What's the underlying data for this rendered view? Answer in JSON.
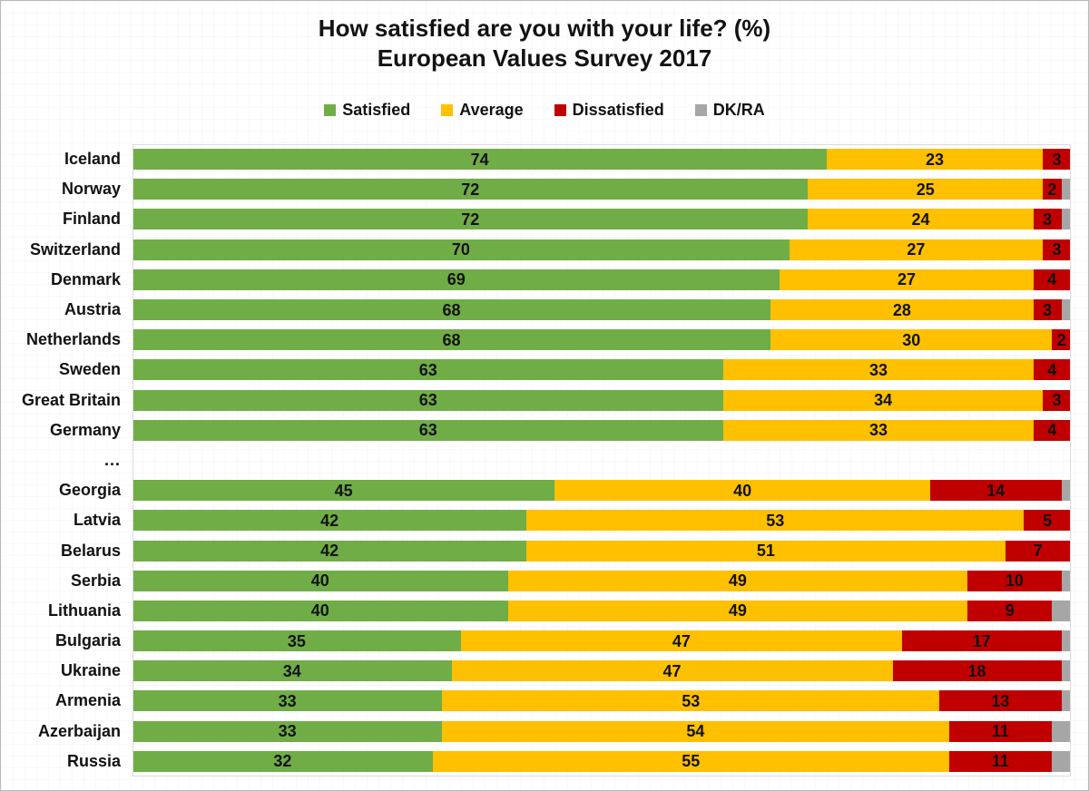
{
  "title": {
    "line1": "How satisfied are you with your life? (%)",
    "line2": "European Values Survey 2017"
  },
  "legend": {
    "items": [
      {
        "key": "satisfied",
        "label": "Satisfied",
        "color": "#70AD47"
      },
      {
        "key": "average",
        "label": "Average",
        "color": "#FFC000"
      },
      {
        "key": "dissatisfied",
        "label": "Dissatisfied",
        "color": "#C00000"
      },
      {
        "key": "dkra",
        "label": "DK/RA",
        "color": "#A6A6A6"
      }
    ]
  },
  "chart_data": {
    "type": "bar",
    "orientation": "horizontal",
    "stacked": true,
    "percent": true,
    "title": "How satisfied are you with your life? (%)",
    "subtitle": "European Values Survey 2017",
    "xlim": [
      0,
      100
    ],
    "grid": false,
    "legend_position": "top",
    "series_keys": [
      "satisfied",
      "average",
      "dissatisfied",
      "dkra"
    ],
    "series_labels": [
      "Satisfied",
      "Average",
      "Dissatisfied",
      "DK/RA"
    ],
    "value_labels_hidden_for": [
      "dkra"
    ],
    "rows": [
      {
        "label": "Iceland",
        "satisfied": 74,
        "average": 23,
        "dissatisfied": 3,
        "dkra": 0
      },
      {
        "label": "Norway",
        "satisfied": 72,
        "average": 25,
        "dissatisfied": 2,
        "dkra": 1
      },
      {
        "label": "Finland",
        "satisfied": 72,
        "average": 24,
        "dissatisfied": 3,
        "dkra": 1
      },
      {
        "label": "Switzerland",
        "satisfied": 70,
        "average": 27,
        "dissatisfied": 3,
        "dkra": 0
      },
      {
        "label": "Denmark",
        "satisfied": 69,
        "average": 27,
        "dissatisfied": 4,
        "dkra": 0
      },
      {
        "label": "Austria",
        "satisfied": 68,
        "average": 28,
        "dissatisfied": 3,
        "dkra": 1
      },
      {
        "label": "Netherlands",
        "satisfied": 68,
        "average": 30,
        "dissatisfied": 2,
        "dkra": 0
      },
      {
        "label": "Sweden",
        "satisfied": 63,
        "average": 33,
        "dissatisfied": 4,
        "dkra": 0
      },
      {
        "label": "Great Britain",
        "satisfied": 63,
        "average": 34,
        "dissatisfied": 3,
        "dkra": 0
      },
      {
        "label": "Germany",
        "satisfied": 63,
        "average": 33,
        "dissatisfied": 4,
        "dkra": 0
      },
      {
        "label": "...",
        "separator": true
      },
      {
        "label": "Georgia",
        "satisfied": 45,
        "average": 40,
        "dissatisfied": 14,
        "dkra": 1
      },
      {
        "label": "Latvia",
        "satisfied": 42,
        "average": 53,
        "dissatisfied": 5,
        "dkra": 0
      },
      {
        "label": "Belarus",
        "satisfied": 42,
        "average": 51,
        "dissatisfied": 7,
        "dkra": 0
      },
      {
        "label": "Serbia",
        "satisfied": 40,
        "average": 49,
        "dissatisfied": 10,
        "dkra": 1
      },
      {
        "label": "Lithuania",
        "satisfied": 40,
        "average": 49,
        "dissatisfied": 9,
        "dkra": 2
      },
      {
        "label": "Bulgaria",
        "satisfied": 35,
        "average": 47,
        "dissatisfied": 17,
        "dkra": 1
      },
      {
        "label": "Ukraine",
        "satisfied": 34,
        "average": 47,
        "dissatisfied": 18,
        "dkra": 1
      },
      {
        "label": "Armenia",
        "satisfied": 33,
        "average": 53,
        "dissatisfied": 13,
        "dkra": 1
      },
      {
        "label": "Azerbaijan",
        "satisfied": 33,
        "average": 54,
        "dissatisfied": 11,
        "dkra": 2
      },
      {
        "label": "Russia",
        "satisfied": 32,
        "average": 55,
        "dissatisfied": 11,
        "dkra": 2
      }
    ]
  }
}
